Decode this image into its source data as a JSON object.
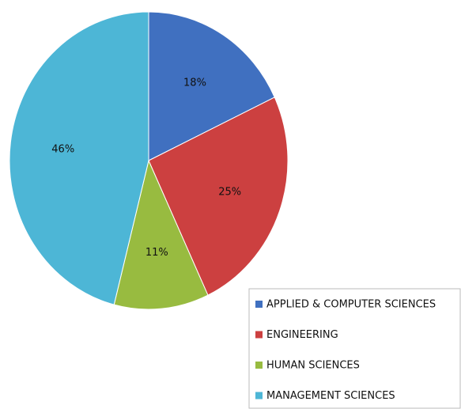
{
  "chart_data": {
    "type": "pie",
    "categories": [
      "APPLIED & COMPUTER SCIENCES",
      "ENGINEERING",
      "HUMAN SCIENCES",
      "MANAGEMENT SCIENCES"
    ],
    "values": [
      18,
      25,
      11,
      46
    ],
    "colors": [
      "#4070c0",
      "#cc4040",
      "#98bb40",
      "#4db6d6"
    ],
    "legend": "bottom-right"
  }
}
